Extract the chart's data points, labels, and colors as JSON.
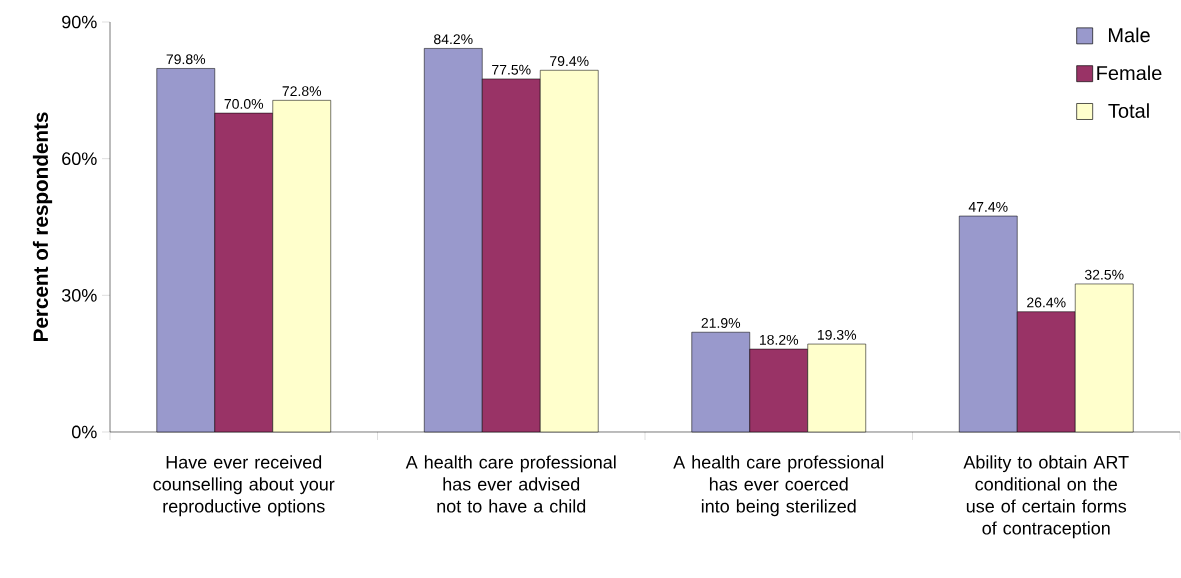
{
  "chart_data": {
    "type": "bar",
    "ylabel": "Percent of respondents",
    "categories": [
      "Have ever received counselling about your reproductive options",
      "A health care professional has ever advised not to have a child",
      "A health care professional has ever coerced into being sterilized",
      "Ability to obtain ART conditional on the use of certain forms of contraception"
    ],
    "series": [
      {
        "name": "Male",
        "color": "#9999cc",
        "values": [
          79.8,
          84.2,
          21.9,
          47.4
        ],
        "value_labels": [
          "79.8%",
          "84.2%",
          "21.9%",
          "47.4%"
        ]
      },
      {
        "name": "Female",
        "color": "#993366",
        "values": [
          70.0,
          77.5,
          18.2,
          26.4
        ],
        "value_labels": [
          "70.0%",
          "77.5%",
          "18.2%",
          "26.4%"
        ]
      },
      {
        "name": "Total",
        "color": "#ffffcc",
        "values": [
          72.8,
          79.4,
          19.3,
          32.5
        ],
        "value_labels": [
          "72.8%",
          "79.4%",
          "19.3%",
          "32.5%"
        ]
      }
    ],
    "ylim": [
      0,
      90
    ],
    "yticks": [
      {
        "value": 0,
        "label": "0%"
      },
      {
        "value": 30,
        "label": "30%"
      },
      {
        "value": 60,
        "label": "60%"
      },
      {
        "value": 90,
        "label": "90%"
      }
    ],
    "grid": false,
    "legend": "top right"
  }
}
